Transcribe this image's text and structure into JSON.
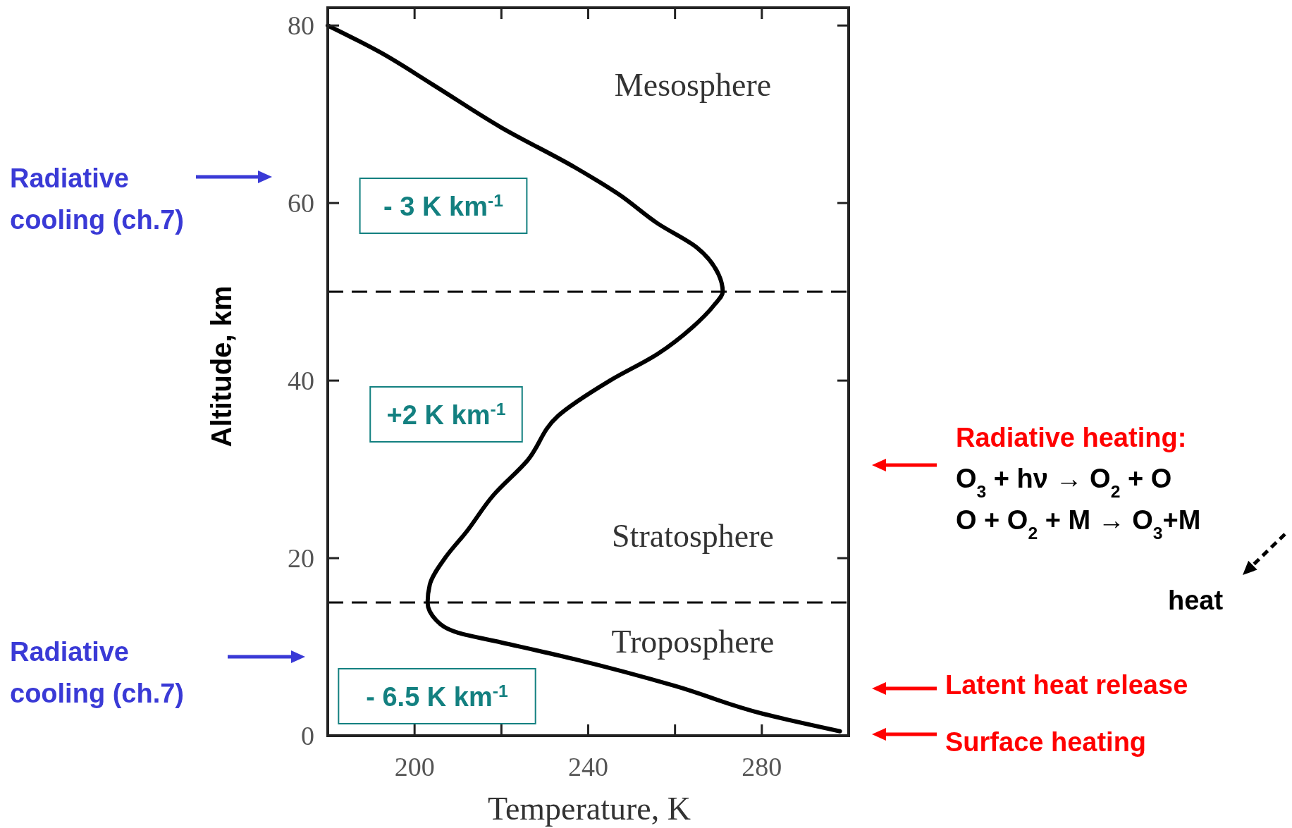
{
  "chart_data": {
    "type": "line",
    "xlabel": "Temperature, K",
    "ylabel": "Altitude, km",
    "x": [
      298,
      280,
      260,
      237,
      220,
      210,
      205,
      203,
      203.5,
      207,
      212,
      218,
      226,
      233,
      245,
      256,
      264,
      269,
      271,
      270,
      265,
      256,
      247,
      237,
      220,
      204,
      192,
      180
    ],
    "series": [
      {
        "color": "#000000",
        "values": [
          0.5,
          2.5,
          5.6,
          8.6,
          10.5,
          11.6,
          13,
          15,
          17,
          20,
          23,
          27,
          31,
          36,
          40,
          43,
          46,
          48.5,
          50,
          52,
          55,
          57.7,
          61,
          64,
          68.5,
          73.4,
          77,
          80
        ]
      }
    ],
    "xlim": [
      180,
      300
    ],
    "ylim": [
      0,
      82
    ],
    "xticks": [
      {
        "value": 180,
        "label": null
      },
      200,
      {
        "value": 220,
        "label": null
      },
      240,
      {
        "value": 260,
        "label": null
      },
      280,
      {
        "value": 300,
        "label": null
      }
    ],
    "yticks": [
      0,
      20,
      40,
      60,
      80
    ],
    "ref_lines": [
      {
        "axis": "y",
        "value": 15,
        "color": "#000000",
        "line_style": "dashed"
      },
      {
        "axis": "y",
        "value": 50,
        "color": "#000000",
        "line_style": "dashed"
      }
    ],
    "annotations": [
      "Mesosphere",
      "Stratosphere",
      "Troposphere",
      "- 3 K km$^{-1}$",
      "+2 K km$^{-1}$",
      "- 6.5 K km$^{-1}$",
      "Radiative cooling (ch.7)",
      "Radiative cooling (ch.7)",
      "Radiative heating:",
      "O$_{3}$ + hν → O$_{2}$ + O",
      "O + O$_{2}$ + M → O$_{3}$+M",
      "heat",
      "Latent heat release",
      "Surface heating"
    ],
    "grid": false,
    "marker": "none",
    "line_style": "solid"
  }
}
